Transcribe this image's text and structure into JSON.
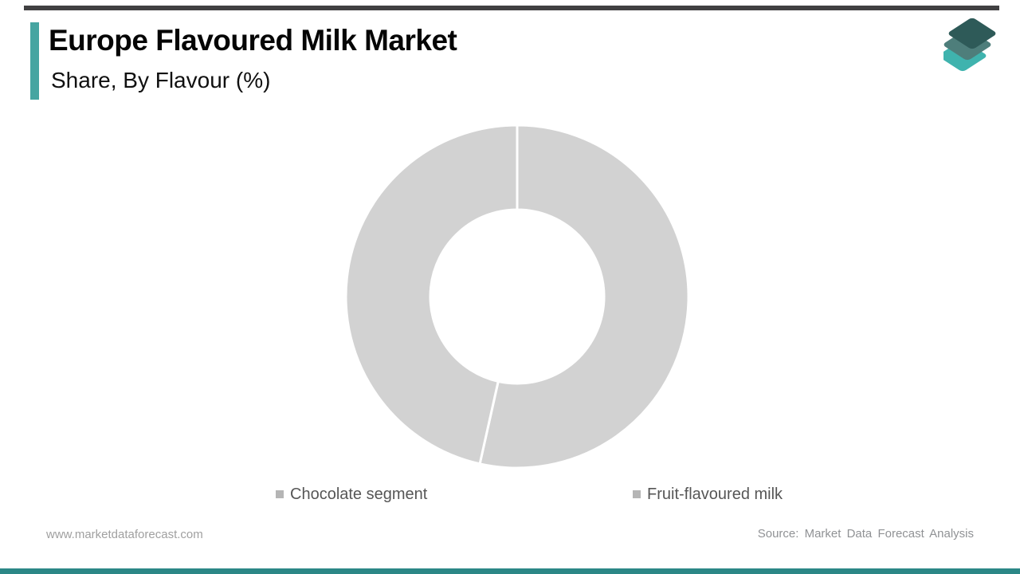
{
  "header": {
    "title": "Europe Flavoured Milk Market",
    "subtitle": "Share, By Flavour (%)"
  },
  "branding": {
    "logo": "market-data-forecast-layers-logo",
    "logo_colors": {
      "top_layer": "#2e5a58",
      "middle_layer": "#4e7e7b",
      "bottom_layer": "#3fb3ae"
    }
  },
  "accents": {
    "title_bar_color": "#46a5a1",
    "top_bar_color": "#414042",
    "bottom_bar_color": "#2b8786"
  },
  "chart_data": {
    "type": "pie",
    "subtype": "donut",
    "title": "Europe Flavoured Milk Market Share, By Flavour (%)",
    "categories": [
      "Chocolate segment",
      "Fruit-flavoured milk"
    ],
    "values": [
      53.5,
      46.5
    ],
    "unit": "%",
    "start_angle_deg": 0,
    "direction": "clockwise",
    "segment_color": "#d2d2d2",
    "divider_color": "#ffffff",
    "inner_radius_ratio": 0.507,
    "data_labels": false,
    "legend_position": "bottom",
    "legend_marker_color": "#b5b5b5"
  },
  "legend": {
    "items": [
      {
        "label": "Chocolate segment",
        "marker_color": "#b5b5b5"
      },
      {
        "label": "Fruit-flavoured milk",
        "marker_color": "#b5b5b5"
      }
    ]
  },
  "footer": {
    "website": "www.marketdataforecast.com",
    "source": "Source: Market Data Forecast Analysis"
  }
}
